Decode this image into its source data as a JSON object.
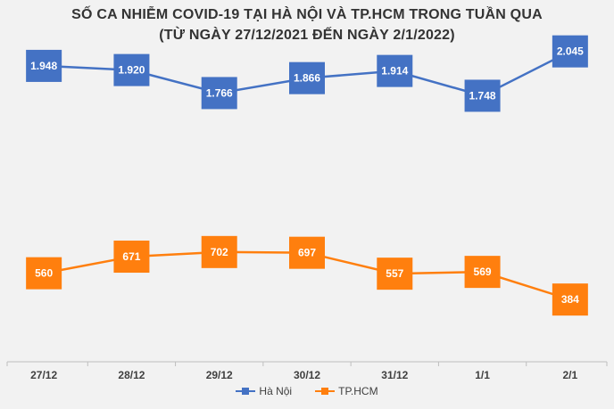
{
  "chart_data": {
    "type": "line",
    "title": "SỐ CA NHIỄM COVID-19 TẠI HÀ NỘI VÀ TP.HCM TRONG TUẦN QUA",
    "subtitle": "(TỪ NGÀY 27/12/2021 ĐẾN NGÀY 2/1/2022)",
    "categories": [
      "27/12",
      "28/12",
      "29/12",
      "30/12",
      "31/12",
      "1/1",
      "2/1"
    ],
    "series": [
      {
        "name": "Hà Nội",
        "color": "#4472C4",
        "values": [
          1948,
          1920,
          1766,
          1866,
          1914,
          1748,
          2045
        ],
        "labels": [
          "1.948",
          "1.920",
          "1.766",
          "1.866",
          "1.914",
          "1.748",
          "2.045"
        ]
      },
      {
        "name": "TP.HCM",
        "color": "#FF7F0E",
        "values": [
          560,
          671,
          702,
          697,
          557,
          569,
          384
        ],
        "labels": [
          "560",
          "671",
          "702",
          "697",
          "557",
          "569",
          "384"
        ]
      }
    ],
    "xlabel": "",
    "ylabel": "",
    "grid": false,
    "legend": "bottom"
  }
}
